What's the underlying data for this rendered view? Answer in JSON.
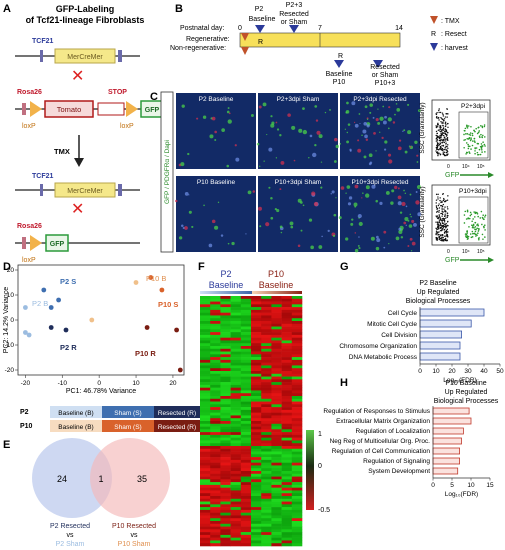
{
  "panelA": {
    "letter": "A",
    "title_line1": "GFP-Labeling",
    "title_line2": "of Tcf21-lineage Fibroblasts",
    "tcf21": "TCF21",
    "mercremer": "MerCreMer",
    "rosa26": "Rosa26",
    "tomato": "Tomato",
    "stop": "STOP",
    "gfp": "GFP",
    "loxp": "loxP",
    "tmx": "TMX"
  },
  "panelB": {
    "letter": "B",
    "postnatal_day": "Postnatal day:",
    "regenerative": "Regenerative:",
    "nonregenerative": "Non-regenerative:",
    "day0": "0",
    "day7": "7",
    "day14": "14",
    "p2": "P2",
    "baseline": "Baseline",
    "p2plus3": "P2+3",
    "resected_or_sham": "Resected",
    "or_sham": "or Sham",
    "r": "R",
    "p10": "P10",
    "p10plus3": "P10+3",
    "legend_tmx": ": TMX",
    "legend_resect": ": Resect",
    "legend_harvest": ": harvest",
    "legend_r": "R"
  },
  "panelC": {
    "letter": "C",
    "ylabel": "GFP / PDGFRα / Dapi",
    "img_labels": [
      "P2 Baseline",
      "P2+3dpi Sham",
      "P2+3dpi Resected",
      "P10 Baseline",
      "P10+3dpi Sham",
      "P10+3dpi Resected"
    ],
    "flow_titles": [
      "P2+3dpi",
      "P10+3dpi"
    ],
    "flow_ylabel": "SSC (Granularity)",
    "flow_xlabel": "GFP",
    "flow_ticks": [
      "0",
      "10⁴",
      "10⁵"
    ],
    "flow_yticks": [
      "0",
      "10⁴",
      "10⁵",
      "10⁶"
    ]
  },
  "panelD": {
    "letter": "D",
    "xlabel": "PC1: 46.78% Variance",
    "ylabel": "PC2: 14.2% Variance",
    "xticks": [
      "-20",
      "-10",
      "0",
      "10",
      "20"
    ],
    "yticks": [
      "20",
      "10",
      "0",
      "-10",
      "-20"
    ],
    "labels": {
      "p2s": "P2 S",
      "p2b": "P2 B",
      "p2r": "P2 R",
      "p10b": "P10 B",
      "p10s": "P10 S",
      "p10r": "P10 R"
    },
    "legend_rows": [
      "P2",
      "P10"
    ],
    "legend_cols": [
      "Baseline (B)",
      "Sham (S)",
      "Resected (R)"
    ]
  },
  "chart_data": {
    "type": "scatter",
    "xlabel": "PC1: 46.78% Variance",
    "ylabel": "PC2: 14.2% Variance",
    "xlim": [
      -22,
      23
    ],
    "ylim": [
      -22,
      22
    ],
    "series": [
      {
        "name": "P2 Baseline (B)",
        "color": "#9bbce0",
        "x": [
          -20,
          -20,
          -19
        ],
        "y": [
          5,
          -5,
          -6
        ]
      },
      {
        "name": "P2 Sham (S)",
        "color": "#3f6fb0",
        "x": [
          -15,
          -11,
          -13
        ],
        "y": [
          12,
          8,
          5
        ]
      },
      {
        "name": "P2 Resected (R)",
        "color": "#1f2d5a",
        "x": [
          -13,
          -9
        ],
        "y": [
          -3,
          -4
        ]
      },
      {
        "name": "P10 Baseline (B)",
        "color": "#f0c08a",
        "x": [
          -2,
          10
        ],
        "y": [
          0,
          15
        ]
      },
      {
        "name": "P10 Sham (S)",
        "color": "#d9622b",
        "x": [
          14,
          17
        ],
        "y": [
          17,
          12
        ]
      },
      {
        "name": "P10 Resected (R)",
        "color": "#7a1d12",
        "x": [
          13,
          21,
          22
        ],
        "y": [
          -3,
          -4,
          -20
        ]
      }
    ]
  },
  "panelE": {
    "letter": "E",
    "left_count": "24",
    "overlap_count": "1",
    "right_count": "35",
    "left_label1": "P2 Resected",
    "left_label2": "vs",
    "left_label3": "P2 Sham",
    "right_label1": "P10 Resected",
    "right_label2": "vs",
    "right_label3": "P10 Sham"
  },
  "panelF": {
    "letter": "F",
    "col1": "P2",
    "col1b": "Baseline",
    "col2": "P10",
    "col2b": "Baseline",
    "scale_max": "1",
    "scale_mid": "0",
    "scale_min": "-0.5"
  },
  "panelG": {
    "letter": "G",
    "title1": "P2 Baseline",
    "title2": "Up Regulated",
    "title3": "Biological Processes",
    "xlabel": "Log₁₀(FDR)",
    "xticks": [
      "0",
      "10",
      "20",
      "30",
      "40",
      "50"
    ],
    "xlim": [
      0,
      50
    ],
    "bars": [
      {
        "label": "Cell Cycle",
        "value": 40
      },
      {
        "label": "Mitotic Cell Cycle",
        "value": 32
      },
      {
        "label": "Cell Division",
        "value": 26
      },
      {
        "label": "Chromosome Organization",
        "value": 25
      },
      {
        "label": "DNA Metabolic Process",
        "value": 25
      }
    ]
  },
  "panelH": {
    "letter": "H",
    "title1": "P10 Baseline",
    "title2": "Up Regulated",
    "title3": "Biological Processes",
    "xlabel": "Log₁₀(FDR)",
    "xticks": [
      "0",
      "5",
      "10",
      "15"
    ],
    "xlim": [
      0,
      15
    ],
    "bars": [
      {
        "label": "Regulation of Responses to Stimulus",
        "value": 9.5
      },
      {
        "label": "Extracellular Matrix Organization",
        "value": 10
      },
      {
        "label": "Regulation of Localization",
        "value": 8
      },
      {
        "label": "Neg Reg of Multicellular Org. Proc.",
        "value": 7.5
      },
      {
        "label": "Regulation of Cell Communication",
        "value": 7
      },
      {
        "label": "Regulation of Signaling",
        "value": 7
      },
      {
        "label": "System Development",
        "value": 6.5
      }
    ]
  }
}
